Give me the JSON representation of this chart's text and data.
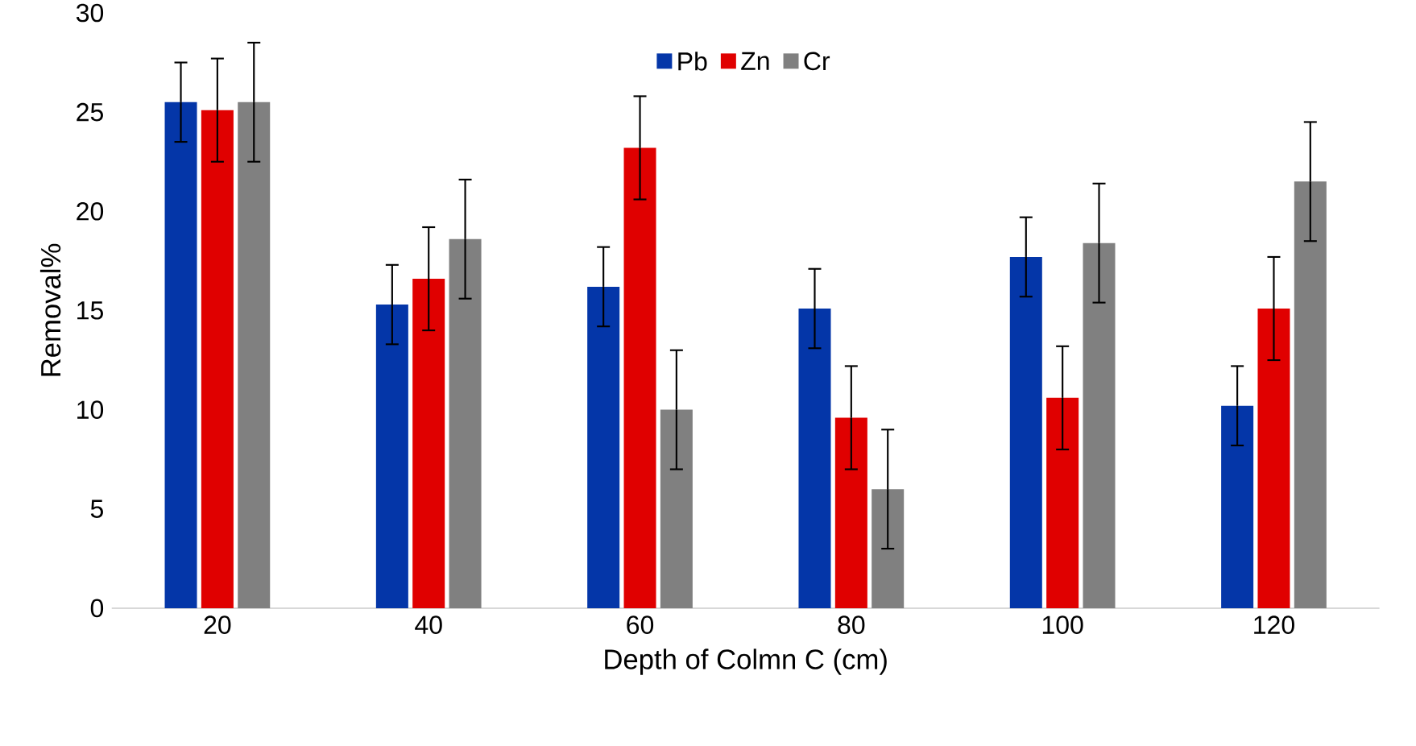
{
  "chart_data": {
    "type": "bar",
    "xlabel": "Depth of Colmn C (cm)",
    "ylabel": "Removal%",
    "categories": [
      "20",
      "40",
      "60",
      "80",
      "100",
      "120"
    ],
    "series": [
      {
        "name": "Pb",
        "color": "#0436a8",
        "values": [
          25.5,
          15.3,
          16.2,
          15.1,
          17.7,
          10.2
        ],
        "errors": [
          2,
          2,
          2,
          2,
          2,
          2
        ]
      },
      {
        "name": "Zn",
        "color": "#e00000",
        "values": [
          25.1,
          16.6,
          23.2,
          9.6,
          10.6,
          15.1
        ],
        "errors": [
          2.6,
          2.6,
          2.6,
          2.6,
          2.6,
          2.6
        ]
      },
      {
        "name": "Cr",
        "color": "#808080",
        "values": [
          25.5,
          18.6,
          10.0,
          6.0,
          18.4,
          21.5
        ],
        "errors": [
          3,
          3,
          3,
          3,
          3,
          3
        ]
      }
    ],
    "ylim": [
      0,
      30
    ],
    "yticks": [
      0,
      5,
      10,
      15,
      20,
      25,
      30
    ],
    "legend": "top"
  }
}
